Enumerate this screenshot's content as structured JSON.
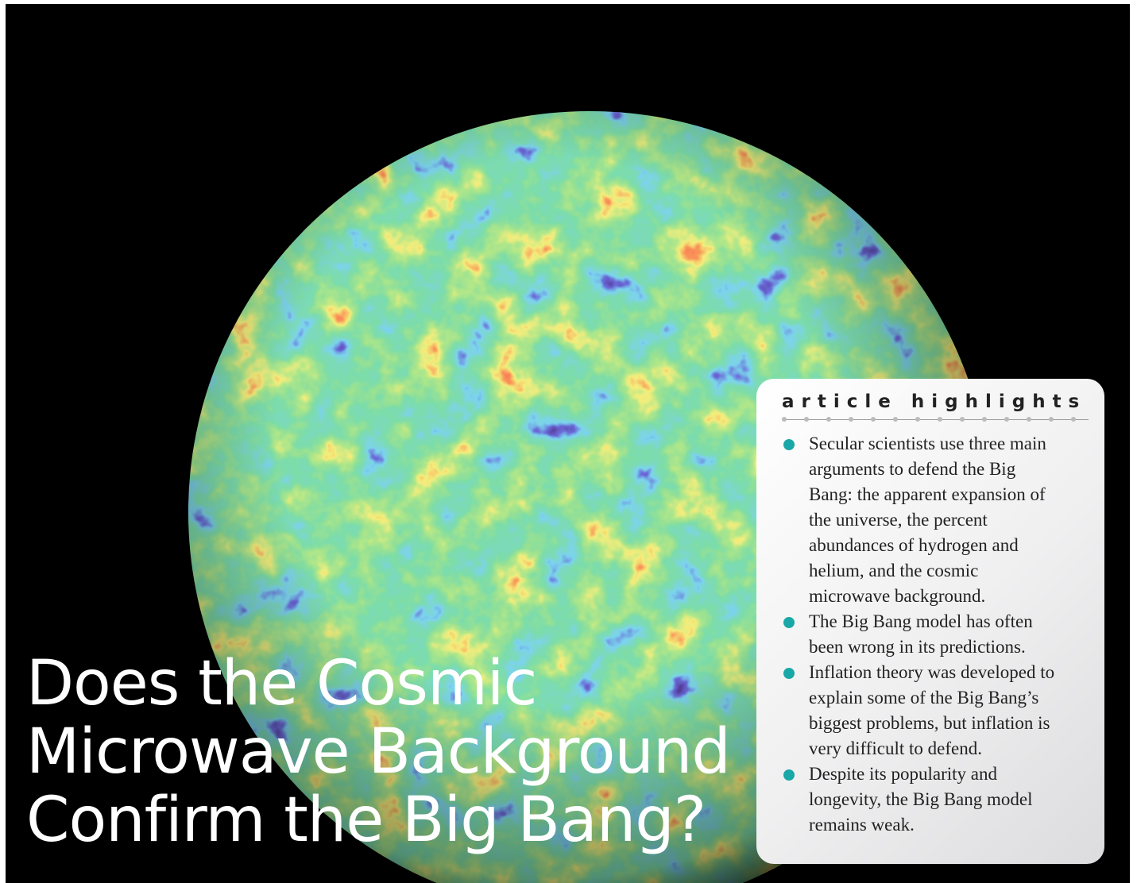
{
  "title": "Does the Cosmic Microwave Background Confirm the Big Bang?",
  "highlights": {
    "heading": "article highlights",
    "items": [
      "Secular scientists use three main arguments to defend the Big Bang: the apparent expansion of the universe, the percent abundances of hydrogen and helium, and the cosmic microwave background.",
      "The Big Bang model has often been wrong in its predictions.",
      "Inflation theory was developed to explain some of the Big Bang’s biggest problems, but inflation is very difficult to defend.",
      "Despite its popularity and longevity, the Big Bang model remains weak."
    ]
  }
}
